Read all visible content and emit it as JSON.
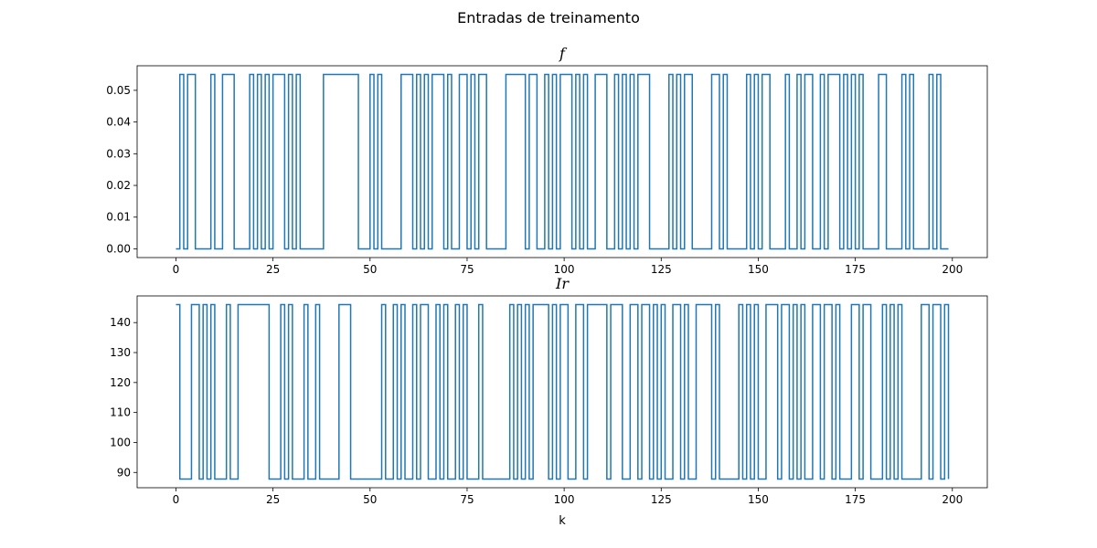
{
  "figure": {
    "suptitle": "Entradas de treinamento"
  },
  "chart_data": [
    {
      "type": "line",
      "drawstyle": "steps-post",
      "title": "f",
      "xlabel": "",
      "ylabel": "",
      "xlim": [
        -10,
        209
      ],
      "ylim": [
        -0.00275,
        0.05775
      ],
      "xticks": [
        0,
        25,
        50,
        75,
        100,
        125,
        150,
        175,
        200
      ],
      "yticks": [
        0.0,
        0.01,
        0.02,
        0.03,
        0.04,
        0.05
      ],
      "ytick_labels": [
        "0.00",
        "0.01",
        "0.02",
        "0.03",
        "0.04",
        "0.05"
      ],
      "grid": false,
      "color": "#1f77b4",
      "low": 0.0,
      "high": 0.055,
      "x_start": 0,
      "x_end": 199,
      "high_intervals": [
        [
          1,
          2
        ],
        [
          3,
          5
        ],
        [
          9,
          10
        ],
        [
          12,
          15
        ],
        [
          19,
          20
        ],
        [
          21,
          22
        ],
        [
          23,
          24
        ],
        [
          25,
          26
        ],
        [
          26,
          28
        ],
        [
          29,
          30
        ],
        [
          31,
          32
        ],
        [
          38,
          47
        ],
        [
          50,
          51
        ],
        [
          52,
          53
        ],
        [
          58,
          61
        ],
        [
          62,
          63
        ],
        [
          64,
          65
        ],
        [
          66,
          69
        ],
        [
          70,
          71
        ],
        [
          73,
          75
        ],
        [
          76,
          77
        ],
        [
          78,
          80
        ],
        [
          85,
          90
        ],
        [
          91,
          93
        ],
        [
          95,
          96
        ],
        [
          97,
          98
        ],
        [
          99,
          102
        ],
        [
          103,
          104
        ],
        [
          105,
          106
        ],
        [
          108,
          111
        ],
        [
          113,
          114
        ],
        [
          115,
          116
        ],
        [
          117,
          118
        ],
        [
          119,
          122
        ],
        [
          127,
          128
        ],
        [
          129,
          130
        ],
        [
          131,
          133
        ],
        [
          138,
          140
        ],
        [
          141,
          142
        ],
        [
          147,
          148
        ],
        [
          149,
          150
        ],
        [
          151,
          153
        ],
        [
          157,
          158
        ],
        [
          160,
          161
        ],
        [
          162,
          164
        ],
        [
          166,
          167
        ],
        [
          168,
          171
        ],
        [
          172,
          173
        ],
        [
          174,
          175
        ],
        [
          176,
          177
        ],
        [
          181,
          183
        ],
        [
          187,
          188
        ],
        [
          189,
          190
        ],
        [
          194,
          195
        ],
        [
          196,
          197
        ]
      ]
    },
    {
      "type": "line",
      "drawstyle": "steps-post",
      "title": "Ir",
      "xlabel": "k",
      "ylabel": "",
      "xlim": [
        -10,
        209
      ],
      "ylim": [
        84.9,
        148.9
      ],
      "xticks": [
        0,
        25,
        50,
        75,
        100,
        125,
        150,
        175,
        200
      ],
      "yticks": [
        90,
        100,
        110,
        120,
        130,
        140
      ],
      "ytick_labels": [
        "90",
        "100",
        "110",
        "120",
        "130",
        "140"
      ],
      "grid": false,
      "color": "#1f77b4",
      "low": 87.8,
      "high": 146.0,
      "x_start": 0,
      "x_end": 199,
      "high_intervals": [
        [
          0,
          1
        ],
        [
          4,
          6
        ],
        [
          7,
          8
        ],
        [
          9,
          10
        ],
        [
          13,
          14
        ],
        [
          16,
          24
        ],
        [
          27,
          28
        ],
        [
          29,
          30
        ],
        [
          33,
          34
        ],
        [
          36,
          37
        ],
        [
          42,
          45
        ],
        [
          53,
          54
        ],
        [
          56,
          57
        ],
        [
          58,
          59
        ],
        [
          61,
          62
        ],
        [
          63,
          65
        ],
        [
          67,
          68
        ],
        [
          69,
          70
        ],
        [
          72,
          73
        ],
        [
          74,
          75
        ],
        [
          78,
          79
        ],
        [
          86,
          87
        ],
        [
          88,
          89
        ],
        [
          90,
          91
        ],
        [
          92,
          96
        ],
        [
          97,
          98
        ],
        [
          99,
          101
        ],
        [
          103,
          105
        ],
        [
          106,
          111
        ],
        [
          112,
          115
        ],
        [
          117,
          119
        ],
        [
          120,
          122
        ],
        [
          123,
          124
        ],
        [
          125,
          126
        ],
        [
          128,
          130
        ],
        [
          131,
          132
        ],
        [
          134,
          138
        ],
        [
          139,
          140
        ],
        [
          145,
          146
        ],
        [
          147,
          148
        ],
        [
          149,
          150
        ],
        [
          152,
          155
        ],
        [
          156,
          158
        ],
        [
          159,
          160
        ],
        [
          161,
          162
        ],
        [
          164,
          166
        ],
        [
          167,
          169
        ],
        [
          170,
          171
        ],
        [
          174,
          176
        ],
        [
          177,
          179
        ],
        [
          182,
          183
        ],
        [
          184,
          185
        ],
        [
          186,
          187
        ],
        [
          192,
          194
        ],
        [
          195,
          197
        ],
        [
          198,
          199
        ]
      ]
    }
  ]
}
